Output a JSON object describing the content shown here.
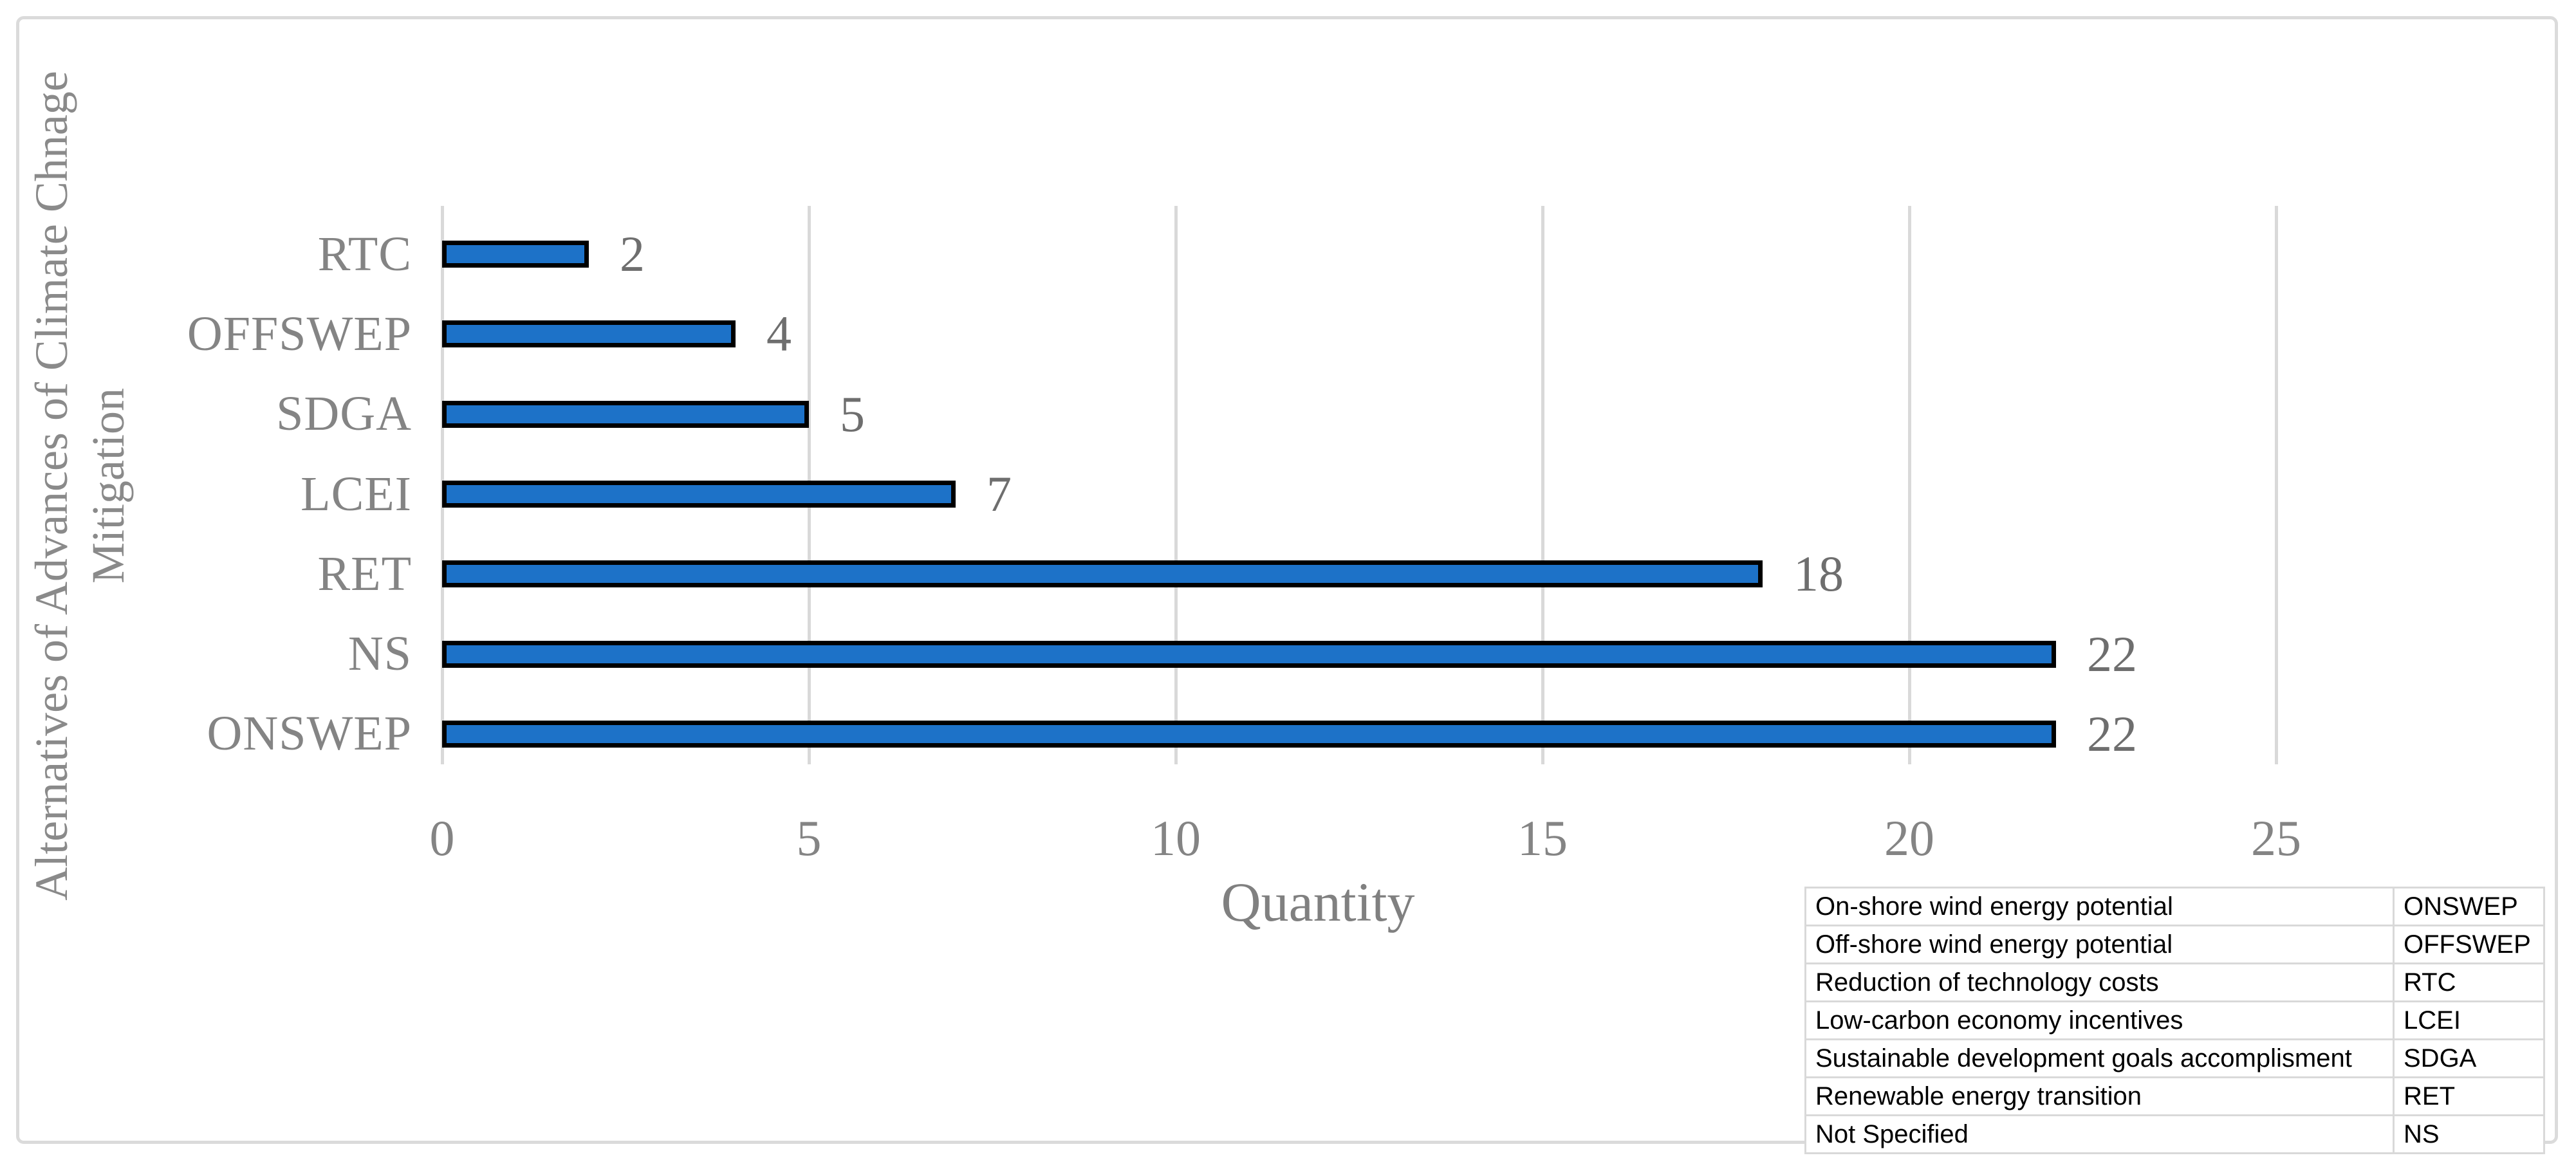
{
  "figure": {
    "background": "#FFFFFF",
    "frame_border_color": "#DBDBDB"
  },
  "chart_data": {
    "type": "bar",
    "orientation": "horizontal",
    "title": "",
    "xlabel": "Quantity",
    "ylabel_lines": [
      "Alternatives of Advances of Climate Chnage",
      "Mitigation"
    ],
    "categories": [
      "RTC",
      "OFFSWEP",
      "SDGA",
      "LCEI",
      "RET",
      "NS",
      "ONSWEP"
    ],
    "values": [
      2,
      4,
      5,
      7,
      18,
      22,
      22
    ],
    "data_labels": [
      "2",
      "4",
      "5",
      "7",
      "18",
      "22",
      "22"
    ],
    "x_ticks": [
      0,
      5,
      10,
      15,
      20,
      25
    ],
    "xlim": [
      0,
      25
    ],
    "grid": true,
    "legend_position": "none",
    "colors": {
      "bar_fill": "#1D72C8",
      "bar_border": "#000000",
      "gridline": "#D9D9D9",
      "value_label": "#6E6E6E",
      "axis_text": "#848484"
    }
  },
  "legend_table": {
    "border_color": "#D9D9D9",
    "text_color": "#000000",
    "rows": [
      {
        "description": "On-shore wind energy potential",
        "abbr": "ONSWEP"
      },
      {
        "description": "Off-shore wind energy potential",
        "abbr": "OFFSWEP"
      },
      {
        "description": "Reduction of technology costs",
        "abbr": "RTC"
      },
      {
        "description": "Low-carbon economy incentives",
        "abbr": "LCEI"
      },
      {
        "description": "Sustainable development goals accomplisment",
        "abbr": "SDGA"
      },
      {
        "description": "Renewable energy transition",
        "abbr": "RET"
      },
      {
        "description": "Not Specified",
        "abbr": "NS"
      }
    ]
  }
}
